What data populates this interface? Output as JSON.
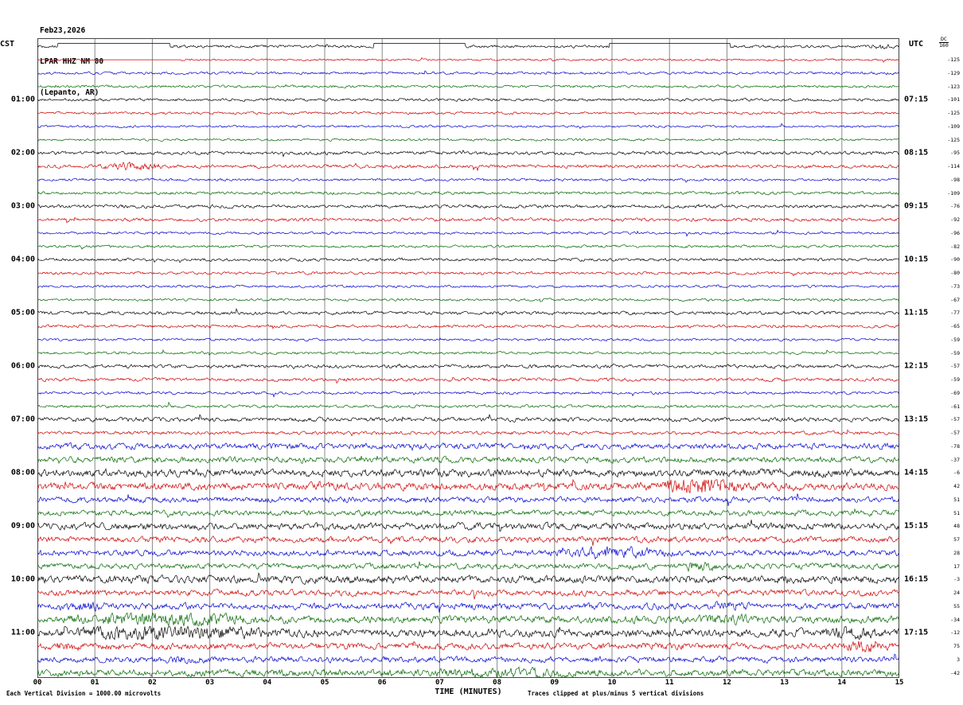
{
  "header": {
    "date": "Feb23,2026",
    "station": "LPAR HHZ NM 00",
    "location": "(Lepanto, AR)"
  },
  "axes": {
    "left_label": "CST",
    "right_label": "UTC",
    "dc_header": [
      "DC",
      "160"
    ],
    "x_title": "TIME (MINUTES)",
    "x_ticks": [
      "00",
      "01",
      "02",
      "03",
      "04",
      "05",
      "06",
      "07",
      "08",
      "09",
      "10",
      "11",
      "12",
      "13",
      "14",
      "15"
    ]
  },
  "footer": {
    "left": "Each Vertical Division = 1000.00 microvolts",
    "right": "Traces clipped at plus/minus 5 vertical divisions"
  },
  "chart_data": {
    "type": "line",
    "title": "LPAR HHZ NM 00 (Lepanto, AR) helicorder, Feb23,2026",
    "x_axis": {
      "title": "TIME (MINUTES)",
      "range": [
        0,
        15
      ]
    },
    "minutes_per_line": 15,
    "lines_per_hour": 4,
    "colors_cycle": [
      "#000000",
      "#cc0000",
      "#0000cc",
      "#006600"
    ],
    "left_time_labels": [
      "01:00",
      "02:00",
      "03:00",
      "04:00",
      "05:00",
      "06:00",
      "07:00",
      "08:00",
      "09:00",
      "10:00",
      "11:00"
    ],
    "right_time_labels": [
      "07:15",
      "08:15",
      "09:15",
      "10:15",
      "11:15",
      "12:15",
      "13:15",
      "14:15",
      "15:15",
      "16:15",
      "17:15"
    ],
    "dc_values": [
      -125,
      -129,
      -123,
      -101,
      -125,
      -109,
      -125,
      -95,
      -114,
      -98,
      -109,
      -76,
      -92,
      -96,
      -82,
      -90,
      -80,
      -73,
      -67,
      -77,
      -65,
      -59,
      -59,
      -57,
      -59,
      -69,
      -61,
      -57,
      -57,
      -78,
      -37,
      -6,
      42,
      51,
      51,
      48,
      57,
      28,
      17,
      -3,
      24,
      55,
      -34,
      -12,
      75,
      3,
      -42
    ],
    "traces": [
      {
        "cst": "00:00",
        "amp": 1.3,
        "flats": [
          {
            "s": 0.35,
            "e": 2.3,
            "dy": -4
          },
          {
            "s": 5.85,
            "e": 7.45,
            "dy": -4
          },
          {
            "s": 9.95,
            "e": 12.05,
            "dy": -4
          }
        ],
        "bursts": [
          {
            "s": 14.35,
            "e": 14.9,
            "m": 2.5
          }
        ]
      },
      {
        "cst": "00:15",
        "amp": 1.0,
        "flats": [
          {
            "s": 1.0,
            "e": 2.5,
            "dy": 0
          }
        ]
      },
      {
        "cst": "00:30",
        "amp": 1.2
      },
      {
        "cst": "00:45",
        "amp": 1.2
      },
      {
        "cst": "01:00",
        "amp": 1.3
      },
      {
        "cst": "01:15",
        "amp": 1.2
      },
      {
        "cst": "01:30",
        "amp": 1.1
      },
      {
        "cst": "01:45",
        "amp": 1.1
      },
      {
        "cst": "02:00",
        "amp": 1.6
      },
      {
        "cst": "02:15",
        "amp": 1.6,
        "bursts": [
          {
            "s": 0.9,
            "e": 2.4,
            "m": 2.6
          }
        ]
      },
      {
        "cst": "02:30",
        "amp": 1.2
      },
      {
        "cst": "02:45",
        "amp": 1.4
      },
      {
        "cst": "03:00",
        "amp": 1.6
      },
      {
        "cst": "03:15",
        "amp": 1.6
      },
      {
        "cst": "03:30",
        "amp": 1.2
      },
      {
        "cst": "03:45",
        "amp": 1.2
      },
      {
        "cst": "04:00",
        "amp": 1.4
      },
      {
        "cst": "04:15",
        "amp": 1.3
      },
      {
        "cst": "04:30",
        "amp": 1.2
      },
      {
        "cst": "04:45",
        "amp": 1.2
      },
      {
        "cst": "05:00",
        "amp": 1.6
      },
      {
        "cst": "05:15",
        "amp": 1.4
      },
      {
        "cst": "05:30",
        "amp": 1.2
      },
      {
        "cst": "05:45",
        "amp": 1.2
      },
      {
        "cst": "06:00",
        "amp": 1.7
      },
      {
        "cst": "06:15",
        "amp": 1.6
      },
      {
        "cst": "06:30",
        "amp": 1.3
      },
      {
        "cst": "06:45",
        "amp": 1.4
      },
      {
        "cst": "07:00",
        "amp": 2.0
      },
      {
        "cst": "07:15",
        "amp": 1.6
      },
      {
        "cst": "07:30",
        "amp": 2.8
      },
      {
        "cst": "07:45",
        "amp": 2.8
      },
      {
        "cst": "08:00",
        "amp": 3.6
      },
      {
        "cst": "08:15",
        "amp": 3.6,
        "bursts": [
          {
            "s": 10.7,
            "e": 12.4,
            "m": 3.2
          }
        ]
      },
      {
        "cst": "08:30",
        "amp": 2.6
      },
      {
        "cst": "08:45",
        "amp": 2.6
      },
      {
        "cst": "09:00",
        "amp": 3.2
      },
      {
        "cst": "09:15",
        "amp": 2.8
      },
      {
        "cst": "09:30",
        "amp": 2.8,
        "bursts": [
          {
            "s": 8.7,
            "e": 11.3,
            "m": 2.2
          }
        ]
      },
      {
        "cst": "09:45",
        "amp": 2.6,
        "bursts": [
          {
            "s": 10.9,
            "e": 12.1,
            "m": 1.9
          }
        ]
      },
      {
        "cst": "10:00",
        "amp": 3.6
      },
      {
        "cst": "10:15",
        "amp": 2.8
      },
      {
        "cst": "10:30",
        "amp": 3.0,
        "bursts": [
          {
            "s": 0.0,
            "e": 1.6,
            "m": 1.7
          },
          {
            "s": 11.4,
            "e": 12.6,
            "m": 1.7
          }
        ]
      },
      {
        "cst": "10:45",
        "amp": 3.4,
        "bursts": [
          {
            "s": 0.0,
            "e": 4.2,
            "m": 2.2
          },
          {
            "s": 11.0,
            "e": 13.0,
            "m": 1.5
          }
        ]
      },
      {
        "cst": "11:00",
        "amp": 3.8,
        "bursts": [
          {
            "s": 0.0,
            "e": 4.5,
            "m": 2.2
          },
          {
            "s": 13.4,
            "e": 15.0,
            "m": 1.8
          }
        ]
      },
      {
        "cst": "11:15",
        "amp": 3.0,
        "bursts": [
          {
            "s": 0.0,
            "e": 1.0,
            "m": 1.6
          },
          {
            "s": 13.9,
            "e": 15.0,
            "m": 2.3
          }
        ]
      },
      {
        "cst": "11:30",
        "amp": 2.8,
        "bursts": [
          {
            "s": 2.0,
            "e": 3.1,
            "m": 1.6
          }
        ]
      },
      {
        "cst": "11:45",
        "amp": 3.2,
        "bursts": [
          {
            "s": 6.0,
            "e": 10.0,
            "m": 1.7
          }
        ]
      }
    ]
  }
}
